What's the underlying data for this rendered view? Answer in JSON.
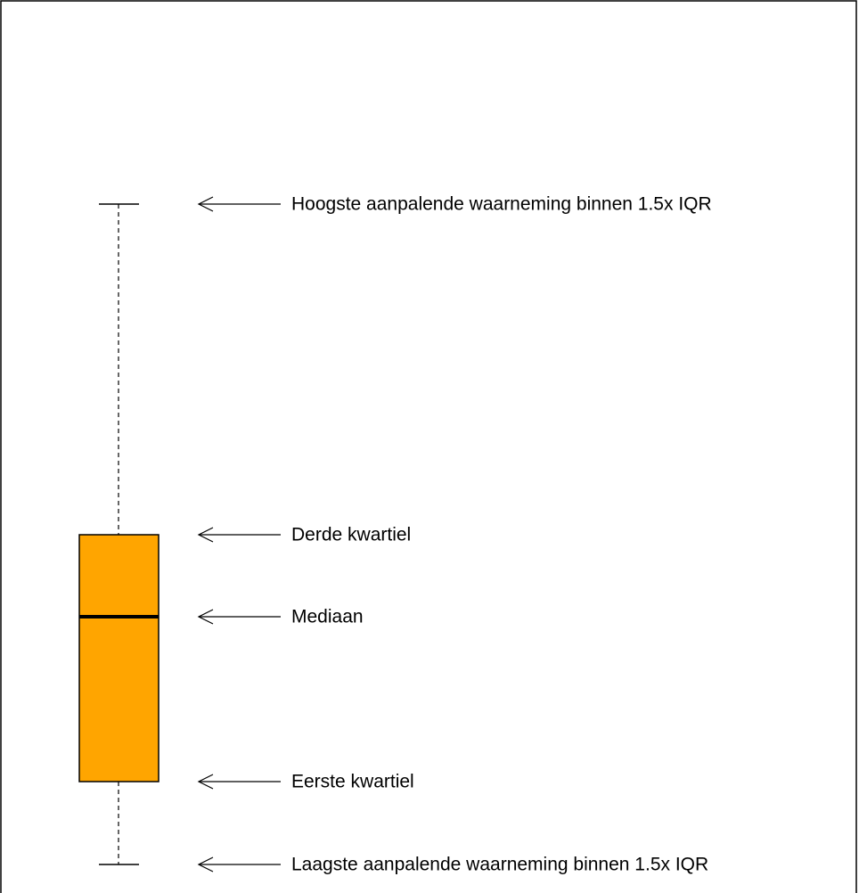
{
  "diagram": {
    "box_color": "#FFA500",
    "line_color": "#000000",
    "background": "#FFFFFF",
    "annotations": [
      {
        "key": "upper_whisker",
        "text": "Hoogste aanpalende waarneming binnen 1.5x IQR"
      },
      {
        "key": "q3",
        "text": "Derde kwartiel"
      },
      {
        "key": "median",
        "text": "Mediaan"
      },
      {
        "key": "q1",
        "text": "Eerste kwartiel"
      },
      {
        "key": "lower_whisker",
        "text": "Laagste aanpalende waarneming binnen 1.5x IQR"
      }
    ]
  }
}
